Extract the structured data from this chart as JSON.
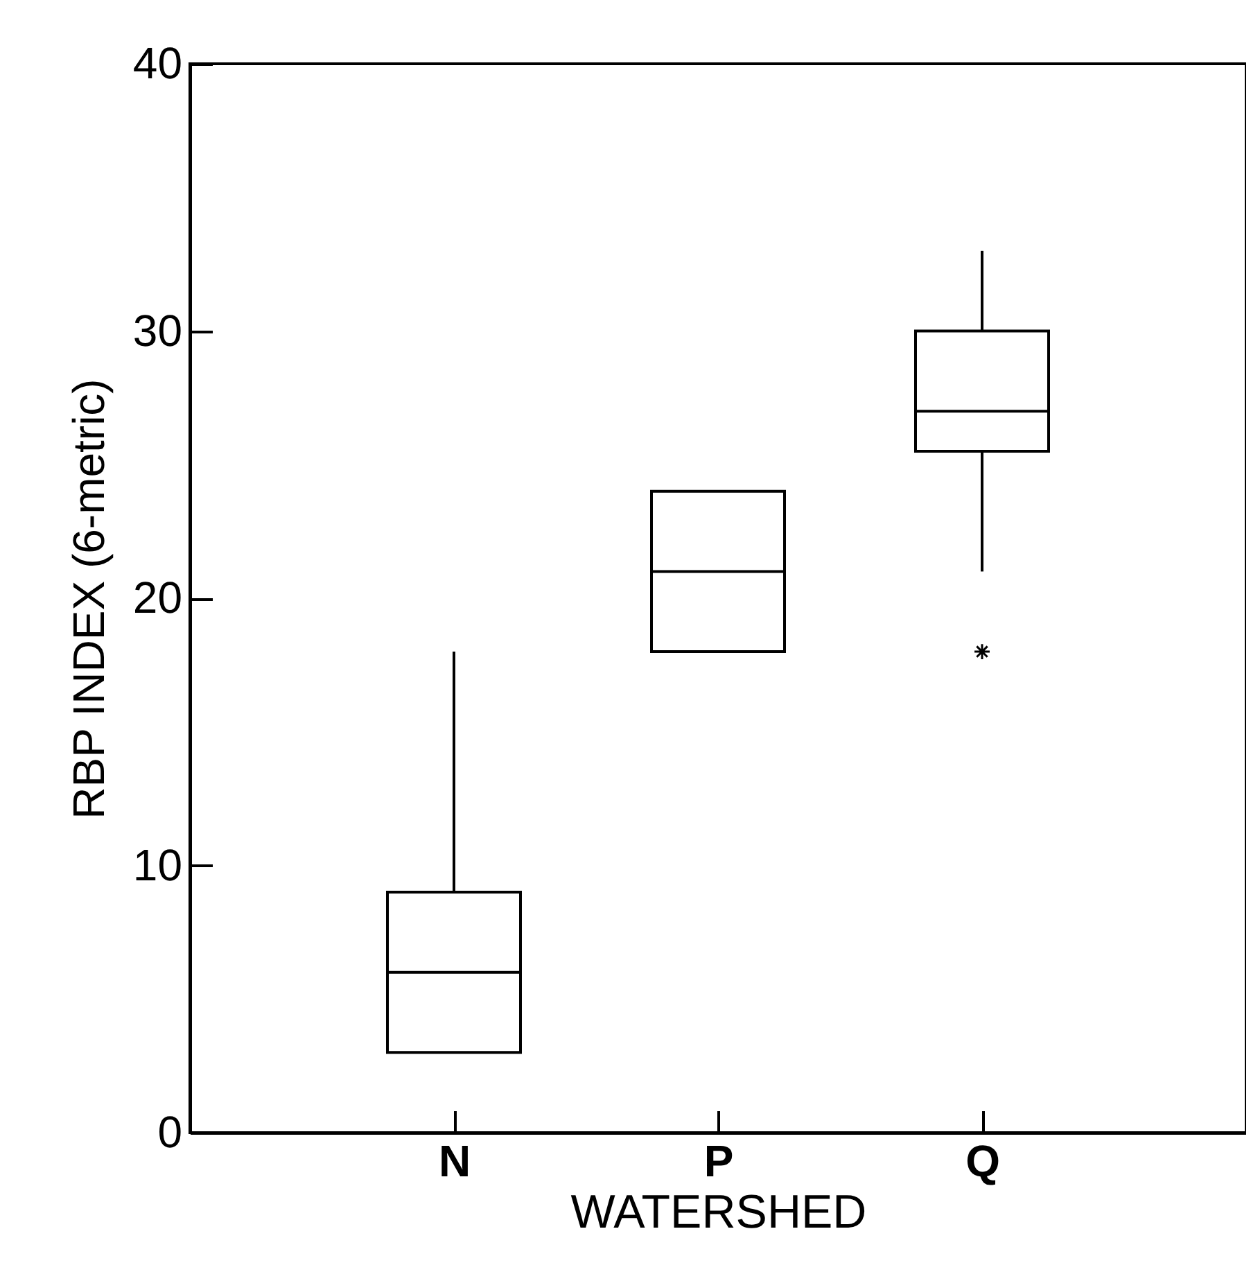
{
  "chart_data": {
    "type": "box",
    "xlabel": "WATERSHED",
    "ylabel": "RBP INDEX (6-metric)",
    "categories": [
      "N",
      "P",
      "Q"
    ],
    "boxes": [
      {
        "low": 3,
        "q1": 3,
        "median": 6,
        "q3": 9,
        "high": 18
      },
      {
        "low": 18,
        "q1": 18,
        "median": 21,
        "q3": 24,
        "high": 24
      },
      {
        "low": 21,
        "q1": 25.5,
        "median": 27,
        "q3": 30,
        "high": 33,
        "outliers": [
          18
        ]
      }
    ],
    "ylim": [
      0,
      40
    ],
    "yticks": [
      0,
      10,
      20,
      30,
      40
    ],
    "grid": false
  }
}
